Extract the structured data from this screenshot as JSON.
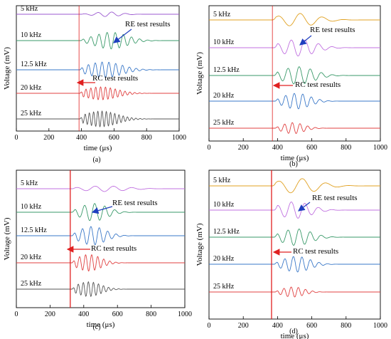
{
  "chart_data": [
    {
      "type": "line",
      "caption": "(a)",
      "xlabel": "time (μs)",
      "ylabel": "Voltage (mV)",
      "xlim": [
        0,
        1000
      ],
      "xticks": [
        0,
        200,
        400,
        600,
        800,
        1000
      ],
      "xtick_labels": [
        "0",
        "200",
        "400",
        "600",
        "800",
        "1000"
      ],
      "marker_time": 385,
      "series": [
        {
          "name": "5 kHz",
          "color": "#9b59d0",
          "onset": 395,
          "peak": 0.25,
          "period": 85,
          "center": 560,
          "width": 110
        },
        {
          "name": "10 kHz",
          "color": "#3a9a6a",
          "onset": 395,
          "peak": 0.9,
          "period": 50,
          "center": 580,
          "width": 140
        },
        {
          "name": "12.5 kHz",
          "color": "#3a78c8",
          "onset": 390,
          "peak": 0.85,
          "period": 42,
          "center": 540,
          "width": 150
        },
        {
          "name": "20 kHz",
          "color": "#e04040",
          "onset": 390,
          "peak": 0.7,
          "period": 30,
          "center": 520,
          "width": 140
        },
        {
          "name": "25 kHz",
          "color": "#555555",
          "onset": 390,
          "peak": 0.85,
          "period": 26,
          "center": 520,
          "width": 140
        }
      ],
      "annotations": [
        {
          "text": "RE test results"
        },
        {
          "text": "RC test results"
        }
      ]
    },
    {
      "type": "line",
      "caption": "(b)",
      "xlabel": "time (μs)",
      "ylabel": "Voltage (mV)",
      "xlim": [
        0,
        1000
      ],
      "xticks": [
        0,
        200,
        400,
        600,
        800,
        1000
      ],
      "xtick_labels": [
        "0",
        "200",
        "400",
        "600",
        "800",
        "1000"
      ],
      "marker_time": 370,
      "series": [
        {
          "name": "5 kHz",
          "color": "#e0a020",
          "onset": 370,
          "peak": 0.7,
          "period": 130,
          "center": 520,
          "width": 160
        },
        {
          "name": "10 kHz",
          "color": "#c070e0",
          "onset": 380,
          "peak": 0.9,
          "period": 80,
          "center": 520,
          "width": 140
        },
        {
          "name": "12.5 kHz",
          "color": "#3a9a6a",
          "onset": 380,
          "peak": 0.95,
          "period": 65,
          "center": 520,
          "width": 130
        },
        {
          "name": "20 kHz",
          "color": "#3a78c8",
          "onset": 385,
          "peak": 0.85,
          "period": 50,
          "center": 510,
          "width": 110
        },
        {
          "name": "25 kHz",
          "color": "#e04040",
          "onset": 385,
          "peak": 0.6,
          "period": 45,
          "center": 490,
          "width": 90
        }
      ],
      "annotations": [
        {
          "text": "RE test results"
        },
        {
          "text": "RC test results"
        }
      ]
    },
    {
      "type": "line",
      "caption": "(c)",
      "xlabel": "time (μs)",
      "ylabel": "Voltage (mV)",
      "xlim": [
        0,
        1000
      ],
      "xticks": [
        0,
        200,
        400,
        600,
        800,
        1000
      ],
      "xtick_labels": [
        "0",
        "200",
        "400",
        "600",
        "800",
        "1000"
      ],
      "marker_time": 320,
      "series": [
        {
          "name": "5 kHz",
          "color": "#c070e0",
          "onset": 330,
          "peak": 0.3,
          "period": 110,
          "center": 520,
          "width": 180
        },
        {
          "name": "10 kHz",
          "color": "#3a9a6a",
          "onset": 330,
          "peak": 0.95,
          "period": 60,
          "center": 460,
          "width": 110
        },
        {
          "name": "12.5 kHz",
          "color": "#3a78c8",
          "onset": 330,
          "peak": 1.0,
          "period": 50,
          "center": 450,
          "width": 110
        },
        {
          "name": "20 kHz",
          "color": "#e04040",
          "onset": 330,
          "peak": 0.9,
          "period": 36,
          "center": 430,
          "width": 100
        },
        {
          "name": "25 kHz",
          "color": "#555555",
          "onset": 330,
          "peak": 0.8,
          "period": 30,
          "center": 430,
          "width": 100
        }
      ],
      "annotations": [
        {
          "text": "RE test results"
        },
        {
          "text": "RC test results"
        }
      ]
    },
    {
      "type": "line",
      "caption": "(d)",
      "xlabel": "time (μs)",
      "ylabel": "Voltage (mV)",
      "xlim": [
        0,
        1000
      ],
      "xticks": [
        0,
        200,
        400,
        600,
        800,
        1000
      ],
      "xtick_labels": [
        "0",
        "200",
        "400",
        "600",
        "800",
        "1000"
      ],
      "marker_time": 365,
      "series": [
        {
          "name": "5 kHz",
          "color": "#e0a020",
          "onset": 370,
          "peak": 0.8,
          "period": 140,
          "center": 520,
          "width": 170
        },
        {
          "name": "10 kHz",
          "color": "#c070e0",
          "onset": 380,
          "peak": 0.9,
          "period": 80,
          "center": 500,
          "width": 130
        },
        {
          "name": "12.5 kHz",
          "color": "#3a9a6a",
          "onset": 380,
          "peak": 0.9,
          "period": 65,
          "center": 510,
          "width": 120
        },
        {
          "name": "20 kHz",
          "color": "#3a78c8",
          "onset": 380,
          "peak": 0.85,
          "period": 50,
          "center": 510,
          "width": 110
        },
        {
          "name": "25 kHz",
          "color": "#e04040",
          "onset": 385,
          "peak": 0.55,
          "period": 42,
          "center": 490,
          "width": 90
        }
      ],
      "annotations": [
        {
          "text": "RE test results"
        },
        {
          "text": "RC test results"
        }
      ]
    }
  ]
}
